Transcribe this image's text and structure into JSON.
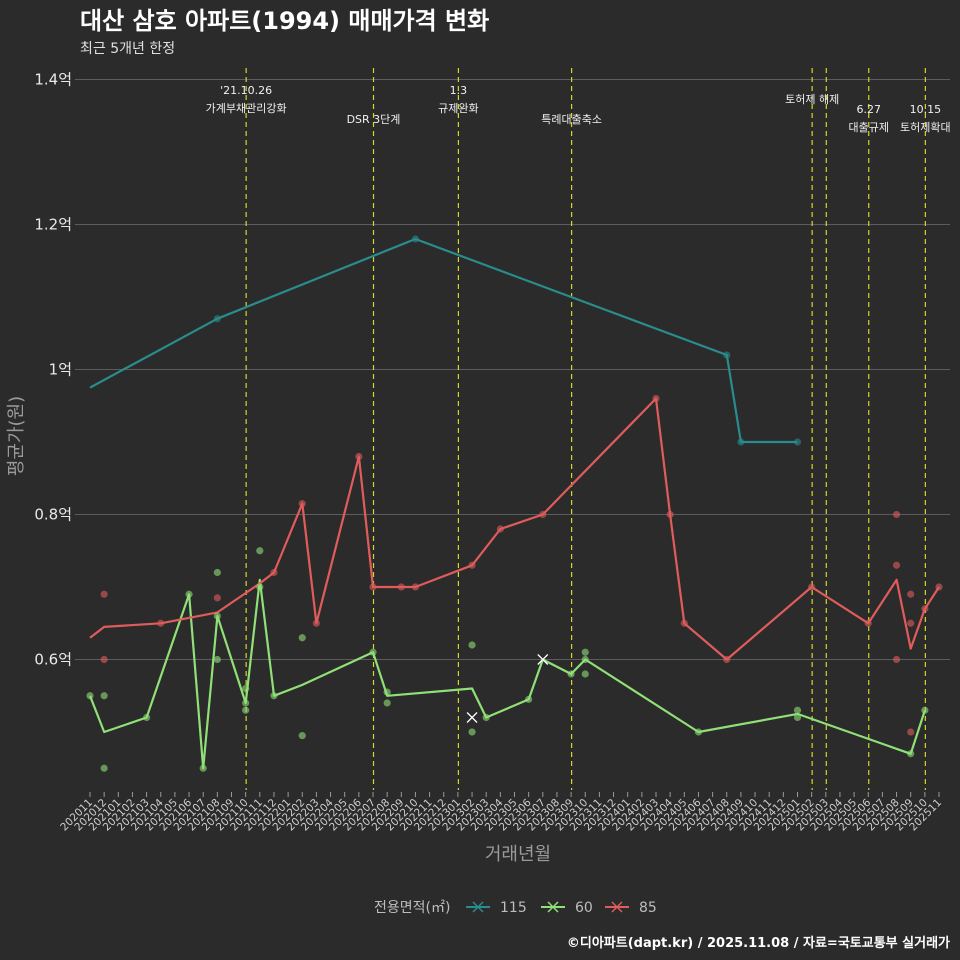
{
  "chart_data": {
    "type": "line",
    "title": "대산 삼호 아파트(1994) 매매가격 변화",
    "subtitle": "최근 5개년 한정",
    "xlabel": "거래년월",
    "ylabel": "평균가(원)",
    "ylim": [
      0.42,
      1.42
    ],
    "yticks": [
      {
        "value": 0.6,
        "label": "0.6억"
      },
      {
        "value": 0.8,
        "label": "0.8억"
      },
      {
        "value": 1.0,
        "label": "1억"
      },
      {
        "value": 1.2,
        "label": "1.2억"
      },
      {
        "value": 1.4,
        "label": "1.4억"
      }
    ],
    "months": [
      "202011",
      "202012",
      "202101",
      "202102",
      "202103",
      "202104",
      "202105",
      "202106",
      "202107",
      "202108",
      "202109",
      "202110",
      "202111",
      "202112",
      "202201",
      "202202",
      "202203",
      "202204",
      "202205",
      "202206",
      "202207",
      "202208",
      "202209",
      "202210",
      "202211",
      "202212",
      "202301",
      "202302",
      "202303",
      "202304",
      "202305",
      "202306",
      "202307",
      "202308",
      "202309",
      "202310",
      "202311",
      "202312",
      "202401",
      "202402",
      "202403",
      "202404",
      "202405",
      "202406",
      "202407",
      "202408",
      "202409",
      "202410",
      "202411",
      "202412",
      "202501",
      "202502",
      "202503",
      "202504",
      "202505",
      "202506",
      "202507",
      "202508",
      "202509",
      "202510",
      "202511"
    ],
    "events": [
      {
        "month": "202110",
        "line1": "'21.10.26",
        "line2": "가계부채관리강화",
        "level": "high"
      },
      {
        "month": "202207",
        "line1": "",
        "line2": "DSR 3단계",
        "level": "low"
      },
      {
        "month": "202301",
        "line1": "1.3",
        "line2": "규제완화",
        "level": "high"
      },
      {
        "month": "202309",
        "line1": "",
        "line2": "특례대출축소",
        "level": "low"
      },
      {
        "month": "202502",
        "line1": "",
        "line2": "토허제 해제",
        "level": "mid"
      },
      {
        "month": "202503",
        "line1": "",
        "line2": "",
        "level": "none"
      },
      {
        "month": "202506",
        "line1": "6.27",
        "line2": "대출규제",
        "level": "right"
      },
      {
        "month": "202510",
        "line1": "10.15",
        "line2": "토허제확대",
        "level": "right"
      }
    ],
    "series": [
      {
        "name": "115",
        "color": "#2a8c8c",
        "line": [
          [
            "202011",
            0.975
          ],
          [
            "202108",
            1.07
          ],
          [
            "202210",
            1.18
          ],
          [
            "202408",
            1.02
          ],
          [
            "202409",
            0.9
          ],
          [
            "202501",
            0.9
          ]
        ],
        "points": [
          [
            "202108",
            1.07
          ],
          [
            "202210",
            1.18
          ],
          [
            "202408",
            1.02
          ],
          [
            "202409",
            0.9
          ],
          [
            "202501",
            0.9
          ]
        ]
      },
      {
        "name": "60",
        "color": "#90e077",
        "line": [
          [
            "202011",
            0.55
          ],
          [
            "202012",
            0.5
          ],
          [
            "202103",
            0.52
          ],
          [
            "202106",
            0.69
          ],
          [
            "202107",
            0.45
          ],
          [
            "202108",
            0.66
          ],
          [
            "202110",
            0.54
          ],
          [
            "202111",
            0.71
          ],
          [
            "202112",
            0.55
          ],
          [
            "202202",
            0.565
          ],
          [
            "202207",
            0.61
          ],
          [
            "202208",
            0.55
          ],
          [
            "202302",
            0.56
          ],
          [
            "202303",
            0.52
          ],
          [
            "202306",
            0.545
          ],
          [
            "202307",
            0.6
          ],
          [
            "202309",
            0.58
          ],
          [
            "202310",
            0.6
          ],
          [
            "202406",
            0.5
          ],
          [
            "202501",
            0.525
          ],
          [
            "202509",
            0.47
          ],
          [
            "202510",
            0.53
          ]
        ],
        "points": [
          [
            "202011",
            0.55
          ],
          [
            "202012",
            0.55
          ],
          [
            "202012",
            0.45
          ],
          [
            "202103",
            0.52
          ],
          [
            "202106",
            0.69
          ],
          [
            "202107",
            0.45
          ],
          [
            "202108",
            0.72
          ],
          [
            "202108",
            0.66
          ],
          [
            "202108",
            0.6
          ],
          [
            "202110",
            0.56
          ],
          [
            "202110",
            0.54
          ],
          [
            "202110",
            0.53
          ],
          [
            "202111",
            0.75
          ],
          [
            "202111",
            0.7
          ],
          [
            "202112",
            0.55
          ],
          [
            "202202",
            0.63
          ],
          [
            "202202",
            0.495
          ],
          [
            "202207",
            0.61
          ],
          [
            "202208",
            0.555
          ],
          [
            "202208",
            0.54
          ],
          [
            "202302",
            0.62
          ],
          [
            "202302",
            0.5
          ],
          [
            "202303",
            0.52
          ],
          [
            "202306",
            0.545
          ],
          [
            "202309",
            0.58
          ],
          [
            "202310",
            0.61
          ],
          [
            "202310",
            0.6
          ],
          [
            "202310",
            0.58
          ],
          [
            "202406",
            0.5
          ],
          [
            "202501",
            0.53
          ],
          [
            "202501",
            0.52
          ],
          [
            "202509",
            0.47
          ],
          [
            "202510",
            0.53
          ]
        ],
        "crosses": [
          [
            "202302",
            0.52
          ],
          [
            "202307",
            0.6
          ]
        ]
      },
      {
        "name": "85",
        "color": "#e05c5c",
        "line": [
          [
            "202011",
            0.63
          ],
          [
            "202012",
            0.645
          ],
          [
            "202104",
            0.65
          ],
          [
            "202108",
            0.665
          ],
          [
            "202111",
            0.705
          ],
          [
            "202112",
            0.72
          ],
          [
            "202202",
            0.815
          ],
          [
            "202203",
            0.65
          ],
          [
            "202206",
            0.88
          ],
          [
            "202207",
            0.7
          ],
          [
            "202209",
            0.7
          ],
          [
            "202210",
            0.7
          ],
          [
            "202302",
            0.73
          ],
          [
            "202304",
            0.78
          ],
          [
            "202307",
            0.8
          ],
          [
            "202403",
            0.96
          ],
          [
            "202404",
            0.8
          ],
          [
            "202405",
            0.65
          ],
          [
            "202408",
            0.6
          ],
          [
            "202502",
            0.7
          ],
          [
            "202506",
            0.65
          ],
          [
            "202508",
            0.71
          ],
          [
            "202509",
            0.615
          ],
          [
            "202510",
            0.67
          ],
          [
            "202511",
            0.7
          ]
        ],
        "points": [
          [
            "202012",
            0.69
          ],
          [
            "202012",
            0.6
          ],
          [
            "202104",
            0.65
          ],
          [
            "202108",
            0.685
          ],
          [
            "202112",
            0.72
          ],
          [
            "202202",
            0.815
          ],
          [
            "202203",
            0.65
          ],
          [
            "202206",
            0.88
          ],
          [
            "202207",
            0.7
          ],
          [
            "202209",
            0.7
          ],
          [
            "202210",
            0.7
          ],
          [
            "202302",
            0.73
          ],
          [
            "202304",
            0.78
          ],
          [
            "202307",
            0.8
          ],
          [
            "202403",
            0.96
          ],
          [
            "202404",
            0.8
          ],
          [
            "202405",
            0.65
          ],
          [
            "202408",
            0.6
          ],
          [
            "202502",
            0.7
          ],
          [
            "202506",
            0.65
          ],
          [
            "202508",
            0.8
          ],
          [
            "202508",
            0.73
          ],
          [
            "202508",
            0.6
          ],
          [
            "202509",
            0.69
          ],
          [
            "202509",
            0.65
          ],
          [
            "202509",
            0.5
          ],
          [
            "202510",
            0.67
          ],
          [
            "202511",
            0.7
          ]
        ]
      }
    ],
    "legend_title": "전용면적(㎡)",
    "legend_position": "bottom"
  },
  "caption": "©디아파트(dapt.kr) / 2025.11.08 / 자료=국토교통부 실거래가"
}
